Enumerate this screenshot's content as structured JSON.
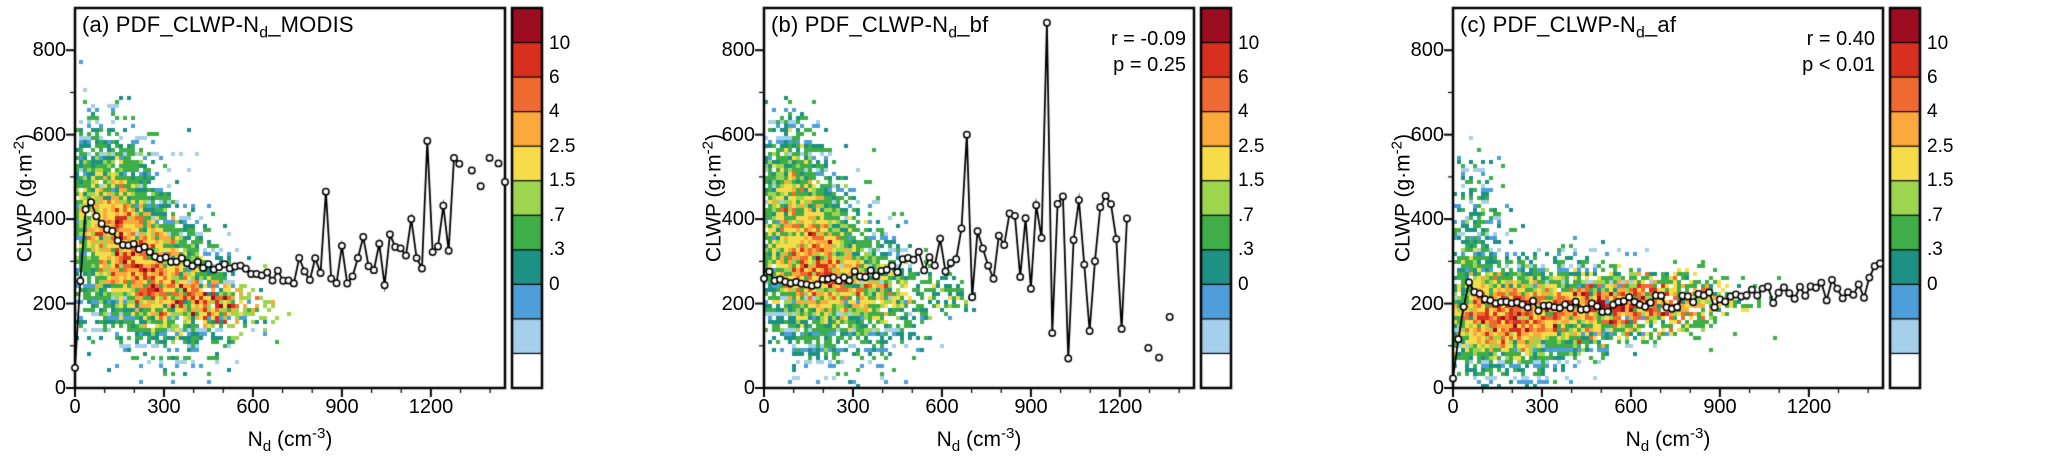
{
  "figure": {
    "background": "#ffffff",
    "frame_color": "#000000",
    "line_color": "#000000"
  },
  "colorbar": {
    "colors_top_to_bottom": [
      "#9c0d22",
      "#d7301f",
      "#ef6a31",
      "#fba93c",
      "#f7dc4a",
      "#9ed54e",
      "#3fae49",
      "#1d9183",
      "#4e9ed9",
      "#a5cfeb",
      "#ffffff"
    ],
    "labels": [
      "10",
      "6",
      "4",
      "2.5",
      "1.5",
      ".7",
      ".3",
      "0"
    ],
    "levels_top_to_bottom": [
      10,
      6,
      4,
      2.5,
      1.5,
      0.7,
      0.3,
      0
    ]
  },
  "axes": {
    "x": {
      "min": 0,
      "max": 1450,
      "ticks": [
        0,
        300,
        600,
        900,
        1200
      ],
      "tick_labels": [
        "0",
        "300",
        "600",
        "900",
        "1200"
      ],
      "minor_step": 100,
      "label": {
        "pre": "N",
        "sub": "d",
        "mid": " (cm",
        "sup": "-3",
        "post": ")"
      }
    },
    "y": {
      "min": 0,
      "max": 900,
      "ticks": [
        0,
        200,
        400,
        600,
        800
      ],
      "tick_labels": [
        "0",
        "200",
        "400",
        "600",
        "800"
      ],
      "minor_step": 100,
      "label": {
        "pre": "CLWP (g·m",
        "sup": "-2",
        "post": ")"
      }
    }
  },
  "panels": [
    {
      "title": {
        "pre": "(a) PDF_CLWP-N",
        "sub": "d",
        "post": "_MODIS"
      },
      "annotation": {
        "line1": "",
        "line2": ""
      }
    },
    {
      "title": {
        "pre": "(b) PDF_CLWP-N",
        "sub": "d",
        "post": "_bf"
      },
      "annotation": {
        "line1": "r = -0.09",
        "line2": "p = 0.25"
      }
    },
    {
      "title": {
        "pre": "(c) PDF_CLWP-N",
        "sub": "d",
        "post": "_af"
      },
      "annotation": {
        "line1": "r = 0.40",
        "line2": "p < 0.01"
      }
    }
  ],
  "chart_data": [
    {
      "type": "heatmap",
      "subtype": "2d-density-with-mean-line",
      "title": "(a) PDF_CLWP-Nd_MODIS",
      "xlabel": "Nd (cm-3)",
      "ylabel": "CLWP (g·m-2)",
      "xlim": [
        0,
        1450
      ],
      "ylim": [
        0,
        900
      ],
      "x_ticks": [
        0,
        300,
        600,
        900,
        1200
      ],
      "y_ticks": [
        0,
        200,
        400,
        600,
        800
      ],
      "colorbar_levels": [
        0,
        0.3,
        0.7,
        1.5,
        2.5,
        4,
        6,
        10
      ],
      "annotation": null,
      "seed": 11,
      "density_blobs": [
        {
          "cx": 160,
          "cy": 345,
          "sx": 105,
          "sy": 105,
          "corr": -0.35,
          "n": 3400,
          "w": 1
        },
        {
          "cx": 300,
          "cy": 255,
          "sx": 115,
          "sy": 75,
          "corr": -0.3,
          "n": 1900,
          "w": 1
        },
        {
          "cx": 120,
          "cy": 480,
          "sx": 55,
          "sy": 75,
          "corr": 0,
          "n": 450,
          "w": 1
        },
        {
          "cx": 470,
          "cy": 205,
          "sx": 100,
          "sy": 30,
          "corr": -0.2,
          "n": 240,
          "w": 4
        }
      ],
      "mean_line": {
        "x_step": 18,
        "x_end": 1310,
        "trend": [
          [
            0,
            55
          ],
          [
            15,
            210
          ],
          [
            30,
            400
          ],
          [
            45,
            455
          ],
          [
            60,
            425
          ],
          [
            90,
            385
          ],
          [
            130,
            360
          ],
          [
            180,
            340
          ],
          [
            240,
            325
          ],
          [
            300,
            312
          ],
          [
            360,
            302
          ],
          [
            420,
            295
          ],
          [
            480,
            288
          ],
          [
            540,
            283
          ],
          [
            600,
            278
          ],
          [
            660,
            272
          ],
          [
            720,
            272
          ],
          [
            780,
            282
          ],
          [
            840,
            288
          ],
          [
            900,
            288
          ],
          [
            960,
            295
          ],
          [
            1020,
            300
          ],
          [
            1080,
            312
          ],
          [
            1140,
            330
          ],
          [
            1200,
            350
          ],
          [
            1260,
            420
          ],
          [
            1310,
            480
          ]
        ],
        "noise": {
          "start": 620,
          "base": 10,
          "scale": 115,
          "seed": 101
        },
        "spikes": [
          [
            852,
            465
          ],
          [
            876,
            248
          ],
          [
            1188,
            585
          ],
          [
            1224,
            335
          ],
          [
            1272,
            545
          ]
        ],
        "extra_points": [
          [
            1338,
            515
          ],
          [
            1368,
            478
          ],
          [
            1398,
            545
          ],
          [
            1428,
            532
          ],
          [
            1450,
            488
          ]
        ]
      }
    },
    {
      "type": "heatmap",
      "subtype": "2d-density-with-mean-line",
      "title": "(b) PDF_CLWP-Nd_bf",
      "xlabel": "Nd (cm-3)",
      "ylabel": "CLWP (g·m-2)",
      "xlim": [
        0,
        1450
      ],
      "ylim": [
        0,
        900
      ],
      "x_ticks": [
        0,
        300,
        600,
        900,
        1200
      ],
      "y_ticks": [
        0,
        200,
        400,
        600,
        800
      ],
      "colorbar_levels": [
        0,
        0.3,
        0.7,
        1.5,
        2.5,
        4,
        6,
        10
      ],
      "annotation": {
        "r": -0.09,
        "p": "0.25"
      },
      "seed": 22,
      "density_blobs": [
        {
          "cx": 130,
          "cy": 330,
          "sx": 95,
          "sy": 110,
          "corr": -0.15,
          "n": 3000,
          "w": 1
        },
        {
          "cx": 255,
          "cy": 250,
          "sx": 105,
          "sy": 85,
          "corr": -0.2,
          "n": 1800,
          "w": 1
        },
        {
          "cx": 85,
          "cy": 500,
          "sx": 48,
          "sy": 80,
          "corr": 0,
          "n": 380,
          "w": 1
        },
        {
          "cx": 415,
          "cy": 220,
          "sx": 85,
          "sy": 48,
          "corr": -0.1,
          "n": 260,
          "w": 2
        },
        {
          "cx": 620,
          "cy": 215,
          "sx": 55,
          "sy": 28,
          "corr": 0,
          "n": 60,
          "w": 2
        }
      ],
      "mean_line": {
        "x_step": 18,
        "x_end": 1240,
        "trend": [
          [
            0,
            268
          ],
          [
            60,
            256
          ],
          [
            120,
            250
          ],
          [
            180,
            252
          ],
          [
            240,
            258
          ],
          [
            300,
            265
          ],
          [
            360,
            272
          ],
          [
            420,
            282
          ],
          [
            480,
            292
          ],
          [
            540,
            302
          ],
          [
            600,
            312
          ],
          [
            660,
            322
          ],
          [
            720,
            330
          ],
          [
            780,
            330
          ],
          [
            840,
            332
          ],
          [
            900,
            335
          ],
          [
            960,
            332
          ],
          [
            1020,
            328
          ],
          [
            1080,
            322
          ],
          [
            1140,
            316
          ],
          [
            1200,
            310
          ],
          [
            1240,
            305
          ]
        ],
        "noise": {
          "start": 430,
          "base": 12,
          "scale": 165,
          "seed": 202
        },
        "spikes": [
          [
            684,
            600
          ],
          [
            708,
            215
          ],
          [
            948,
            865
          ],
          [
            972,
            130
          ],
          [
            1020,
            70
          ],
          [
            1056,
            445
          ],
          [
            1104,
            135
          ],
          [
            1152,
            455
          ],
          [
            1200,
            140
          ]
        ],
        "extra_points": [
          [
            1296,
            95
          ],
          [
            1332,
            72
          ],
          [
            1368,
            168
          ]
        ]
      }
    },
    {
      "type": "heatmap",
      "subtype": "2d-density-with-mean-line",
      "title": "(c) PDF_CLWP-Nd_af",
      "xlabel": "Nd (cm-3)",
      "ylabel": "CLWP (g·m-2)",
      "xlim": [
        0,
        1450
      ],
      "ylim": [
        0,
        900
      ],
      "x_ticks": [
        0,
        300,
        600,
        900,
        1200
      ],
      "y_ticks": [
        0,
        200,
        400,
        600,
        800
      ],
      "colorbar_levels": [
        0,
        0.3,
        0.7,
        1.5,
        2.5,
        4,
        6,
        10
      ],
      "annotation": {
        "r": 0.4,
        "p": "< 0.01"
      },
      "seed": 33,
      "density_blobs": [
        {
          "cx": 170,
          "cy": 165,
          "sx": 115,
          "sy": 58,
          "corr": 0,
          "n": 2900,
          "w": 1
        },
        {
          "cx": 380,
          "cy": 185,
          "sx": 135,
          "sy": 52,
          "corr": 0.08,
          "n": 1700,
          "w": 1
        },
        {
          "cx": 640,
          "cy": 198,
          "sx": 150,
          "sy": 38,
          "corr": 0.08,
          "n": 800,
          "w": 3
        },
        {
          "cx": 75,
          "cy": 290,
          "sx": 45,
          "sy": 115,
          "corr": 0,
          "n": 520,
          "w": 1
        },
        {
          "cx": 860,
          "cy": 212,
          "sx": 55,
          "sy": 24,
          "corr": 0,
          "n": 100,
          "w": 2
        }
      ],
      "mean_line": {
        "x_step": 18,
        "x_end": 1450,
        "trend": [
          [
            0,
            15
          ],
          [
            18,
            110
          ],
          [
            36,
            195
          ],
          [
            54,
            250
          ],
          [
            72,
            230
          ],
          [
            100,
            215
          ],
          [
            150,
            206
          ],
          [
            200,
            200
          ],
          [
            300,
            194
          ],
          [
            400,
            191
          ],
          [
            500,
            194
          ],
          [
            600,
            199
          ],
          [
            700,
            204
          ],
          [
            800,
            204
          ],
          [
            900,
            209
          ],
          [
            1000,
            214
          ],
          [
            1100,
            219
          ],
          [
            1200,
            227
          ],
          [
            1300,
            233
          ],
          [
            1400,
            243
          ],
          [
            1450,
            288
          ]
        ],
        "noise": {
          "start": 60,
          "base": 9,
          "scale": 20,
          "seed": 303
        },
        "spikes": [
          [
            1440,
            295
          ]
        ],
        "extra_points": []
      }
    }
  ]
}
